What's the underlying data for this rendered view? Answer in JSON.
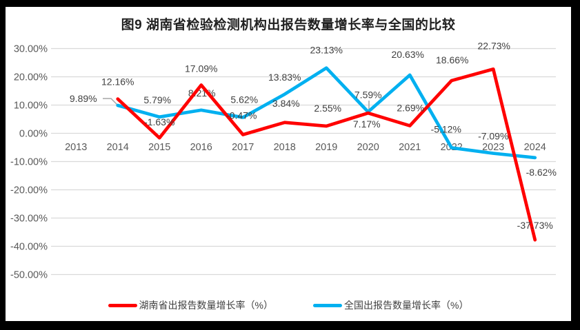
{
  "chart_data": {
    "type": "line",
    "title": "图9 湖南省检验检测机构出报告数量增长率与全国的比较",
    "categories": [
      "2013",
      "2014",
      "2015",
      "2016",
      "2017",
      "2018",
      "2019",
      "2020",
      "2021",
      "2022",
      "2023",
      "2024"
    ],
    "series": [
      {
        "name": "湖南省出报告数量增长率（%）",
        "color": "#FF0000",
        "values": [
          null,
          12.16,
          -1.63,
          17.09,
          -0.47,
          3.84,
          2.55,
          7.17,
          2.69,
          18.66,
          22.73,
          -37.73
        ]
      },
      {
        "name": "全国出报告数量增长率（%）",
        "color": "#00B0F0",
        "values": [
          null,
          9.89,
          5.79,
          8.21,
          5.62,
          13.83,
          23.13,
          7.59,
          20.63,
          -5.12,
          -7.09,
          -8.62
        ]
      }
    ],
    "y_axis": {
      "ticks": [
        "30.00%",
        "20.00%",
        "10.00%",
        "0.00%",
        "-10.00%",
        "-20.00%",
        "-30.00%",
        "-40.00%",
        "-50.00%"
      ],
      "min": -50,
      "max": 30
    },
    "grid": true,
    "data_labels": true,
    "legend_position": "bottom"
  },
  "colors": {
    "red_series": "#FF0000",
    "blue_series": "#00B0F0",
    "grid": "#D9D9D9",
    "axis_text": "#595959",
    "label_text": "#404040",
    "leader": "#A6A6A6",
    "chart_bg": "#FFFFFF",
    "frame_bg": "#000000"
  }
}
